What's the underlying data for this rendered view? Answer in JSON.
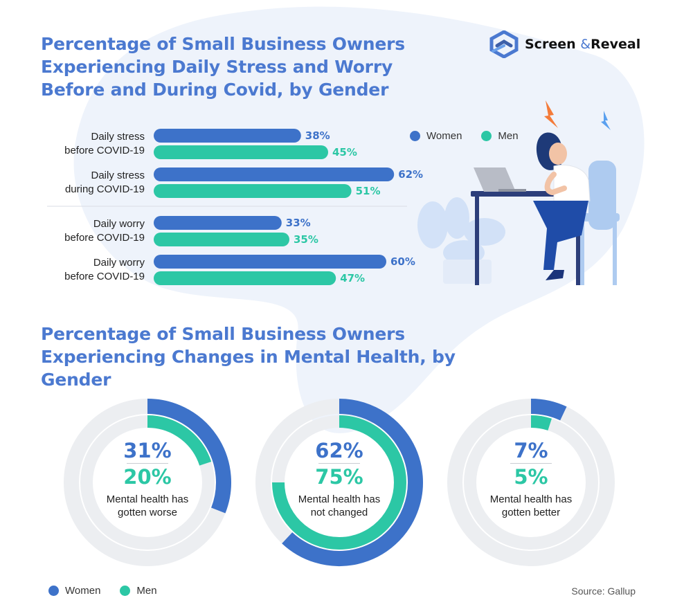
{
  "brand": {
    "name": "Screen",
    "amp": "&",
    "name2": "Reveal"
  },
  "chart_data": [
    {
      "type": "bar",
      "title": "Percentage of Small Business Owners Experiencing Daily Stress and Worry Before and During Covid, by Gender",
      "categories": [
        [
          "Daily stress",
          "before COVID-19"
        ],
        [
          "Daily stress",
          "during COVID-19"
        ],
        [
          "Daily worry",
          "before COVID-19"
        ],
        [
          "Daily worry",
          "before COVID-19"
        ]
      ],
      "series": [
        {
          "name": "Women",
          "values": [
            38,
            62,
            33,
            60
          ]
        },
        {
          "name": "Men",
          "values": [
            45,
            51,
            35,
            47
          ]
        }
      ],
      "unit": "%",
      "ylim": [
        0,
        100
      ],
      "legend": "top-right",
      "colors": {
        "Women": "#3d72c9",
        "Men": "#2cc7a5"
      }
    },
    {
      "type": "pie",
      "title": "Percentage of Small Business Owners Experiencing Changes in Mental Health, by Gender",
      "categories": [
        "Mental health has gotten worse",
        "Mental health has not changed",
        "Mental health has gotten better"
      ],
      "series": [
        {
          "name": "Women",
          "values": [
            31,
            62,
            7
          ]
        },
        {
          "name": "Men",
          "values": [
            20,
            75,
            5
          ]
        }
      ],
      "unit": "%",
      "legend": "bottom-left",
      "colors": {
        "Women": "#3d72c9",
        "Men": "#2cc7a5",
        "track": "#eceef1"
      }
    }
  ],
  "donuts": [
    {
      "women": "31%",
      "men": "20%",
      "label1": "Mental health has",
      "label2": "gotten worse"
    },
    {
      "women": "62%",
      "men": "75%",
      "label1": "Mental health has",
      "label2": "not changed"
    },
    {
      "women": "7%",
      "men": "5%",
      "label1": "Mental health has",
      "label2": "gotten better"
    }
  ],
  "legend": {
    "women": "Women",
    "men": "Men"
  },
  "source": "Source: Gallup"
}
